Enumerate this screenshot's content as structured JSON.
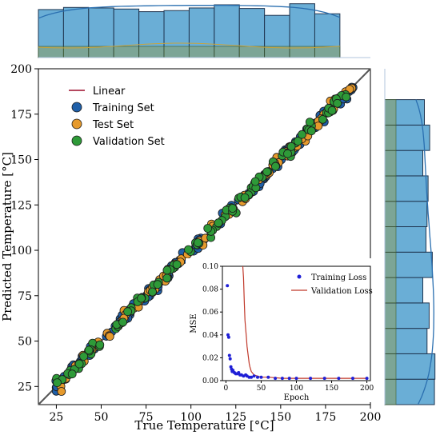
{
  "chart_data": [
    {
      "type": "scatter",
      "title": "",
      "xlabel": "True Temperature [°C]",
      "ylabel": "Predicted Temperature [°C]",
      "xlim": [
        15,
        200
      ],
      "ylim": [
        15,
        200
      ],
      "xticks": [
        25,
        50,
        75,
        100,
        125,
        150,
        175,
        200
      ],
      "yticks": [
        25,
        50,
        75,
        100,
        125,
        150,
        175,
        200
      ],
      "grid": false,
      "legend_position": "top-left",
      "series": [
        {
          "name": "Linear",
          "kind": "line",
          "color": "#b5485f",
          "x": [
            15,
            200
          ],
          "y": [
            15,
            200
          ]
        },
        {
          "name": "Training Set",
          "kind": "scatter",
          "color": "#1f5fa8",
          "x_range": [
            24,
            191
          ]
        },
        {
          "name": "Test Set",
          "kind": "scatter",
          "color": "#e69a2c",
          "x_range": [
            26,
            190
          ]
        },
        {
          "name": "Validation Set",
          "kind": "scatter",
          "color": "#2e9a38",
          "x_range": [
            25,
            191
          ]
        }
      ],
      "identity_line_color": "#555555"
    },
    {
      "type": "bar",
      "title": "",
      "orientation": "vertical",
      "bin_edges": [
        15,
        29,
        43,
        57,
        71,
        85,
        99,
        113,
        127,
        141,
        155,
        169,
        183
      ],
      "values": [
        0.91,
        0.95,
        0.94,
        0.92,
        0.87,
        0.89,
        0.94,
        1.0,
        0.93,
        0.8,
        1.02,
        0.83
      ],
      "color": "#6aaed6"
    },
    {
      "type": "bar",
      "title": "",
      "orientation": "horizontal",
      "bin_edges": [
        15,
        29,
        43,
        57,
        71,
        85,
        99,
        113,
        127,
        141,
        155,
        169,
        183
      ],
      "values": [
        0.94,
        0.95,
        0.8,
        0.84,
        0.72,
        0.9,
        0.78,
        0.8,
        0.82,
        0.72,
        0.85,
        0.75
      ],
      "color": "#6aaed6"
    },
    {
      "type": "line",
      "title": "",
      "xlabel": "Epoch",
      "ylabel": "MSE",
      "xlim": [
        -5,
        205
      ],
      "ylim": [
        0,
        0.1
      ],
      "xticks": [
        0,
        50,
        100,
        150,
        200
      ],
      "yticks": [
        0.0,
        0.02,
        0.04,
        0.06,
        0.08,
        0.1
      ],
      "legend_position": "top-right",
      "series": [
        {
          "name": "Training Loss",
          "kind": "scatter",
          "color": "#1f1fd6",
          "x": [
            2,
            3,
            4,
            5,
            6,
            7,
            8,
            9,
            10,
            12,
            14,
            16,
            18,
            20,
            22,
            25,
            28,
            30,
            33,
            36,
            40,
            45,
            50,
            60,
            70,
            80,
            90,
            100,
            120,
            140,
            160,
            180,
            200
          ],
          "y": [
            0.083,
            0.04,
            0.038,
            0.022,
            0.019,
            0.012,
            0.01,
            0.008,
            0.009,
            0.007,
            0.006,
            0.006,
            0.007,
            0.005,
            0.005,
            0.004,
            0.005,
            0.004,
            0.003,
            0.003,
            0.004,
            0.003,
            0.003,
            0.003,
            0.002,
            0.002,
            0.002,
            0.002,
            0.002,
            0.002,
            0.002,
            0.002,
            0.002
          ]
        },
        {
          "name": "Validation Loss",
          "kind": "line",
          "color": "#c0392b",
          "x": [
            24,
            25,
            26,
            27,
            28,
            29,
            30,
            31,
            32,
            33,
            34,
            36,
            40,
            45,
            50,
            60,
            80,
            100,
            150,
            200
          ],
          "y": [
            0.1,
            0.09,
            0.07,
            0.053,
            0.045,
            0.038,
            0.03,
            0.025,
            0.02,
            0.015,
            0.012,
            0.008,
            0.005,
            0.004,
            0.003,
            0.003,
            0.002,
            0.002,
            0.002,
            0.002
          ]
        }
      ]
    }
  ]
}
